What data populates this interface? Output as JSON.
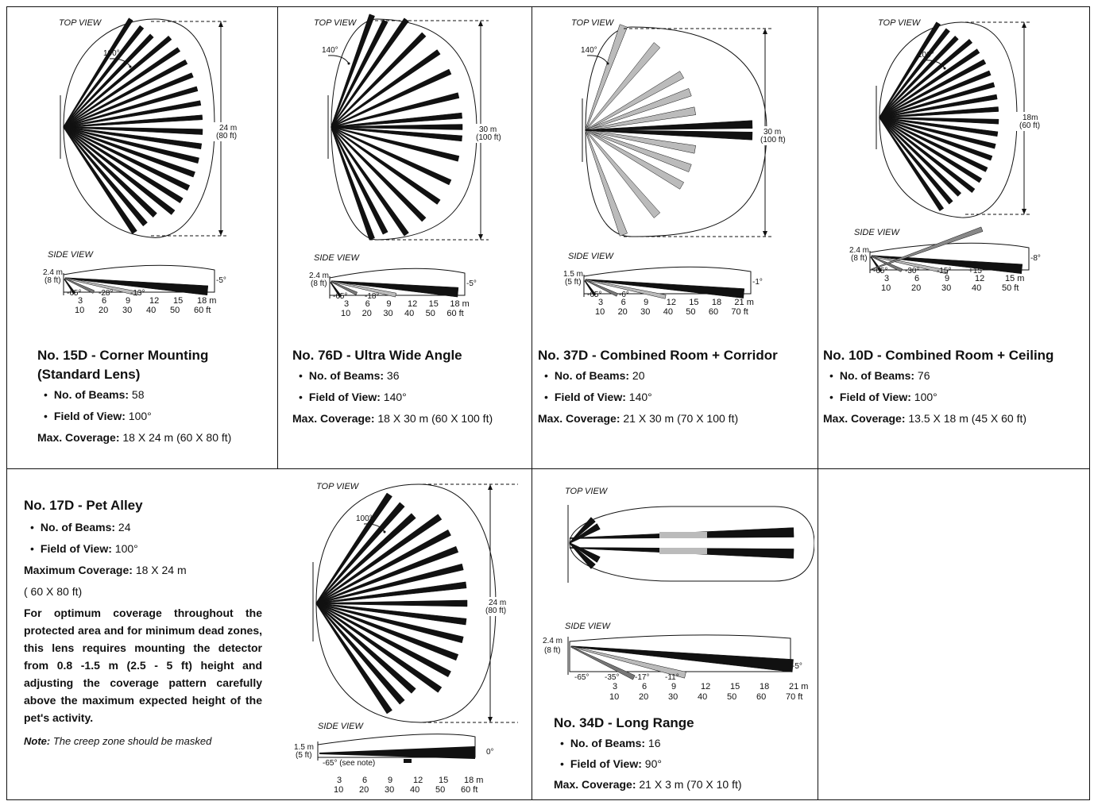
{
  "lenses": [
    {
      "title": "No. 15D - Corner Mounting",
      "subtitle": "(Standard Lens)",
      "beams_label": "No. of Beams:",
      "beams": "58",
      "fov_label": "Field of View:",
      "fov": "100°",
      "coverage_label": "Max. Coverage:",
      "coverage": "18 X 24 m (60 X 80 ft)",
      "top_view": "TOP VIEW",
      "angle": "100°",
      "range_m": "24 m",
      "range_ft": "(80 ft)",
      "side_view": "SIDE VIEW",
      "height_m": "2.4 m",
      "height_ft": "(8 ft)",
      "side_angles": [
        "-65°",
        "-28°",
        "-13°",
        "-5°"
      ],
      "ticks_m": [
        "3",
        "6",
        "9",
        "12",
        "15",
        "18 m"
      ],
      "ticks_ft": [
        "10",
        "20",
        "30",
        "40",
        "50",
        "60 ft"
      ]
    },
    {
      "title": "No. 76D - Ultra Wide Angle",
      "beams_label": "No. of Beams:",
      "beams": "36",
      "fov_label": "Field of View:",
      "fov": "140°",
      "coverage_label": "Max. Coverage:",
      "coverage": "18 X 30 m  (60 X 100 ft)",
      "top_view": "TOP VIEW",
      "angle": "140°",
      "range_m": "30 m",
      "range_ft": "(100 ft)",
      "side_view": "SIDE VIEW",
      "height_m": "2.4 m",
      "height_ft": "(8 ft)",
      "side_angles": [
        "-65°",
        "-18°",
        "-5°"
      ],
      "ticks_m": [
        "3",
        "6",
        "9",
        "12",
        "15",
        "18 m"
      ],
      "ticks_ft": [
        "10",
        "20",
        "30",
        "40",
        "50",
        "60 ft"
      ]
    },
    {
      "title": "No. 37D - Combined Room + Corridor",
      "beams_label": "No. of Beams:",
      "beams": "20",
      "fov_label": "Field of View:",
      "fov": "140°",
      "coverage_label": "Max. Coverage:",
      "coverage": "21 X 30 m (70 X 100 ft)",
      "top_view": "TOP VIEW",
      "angle": "140°",
      "range_m": "30 m",
      "range_ft": "(100 ft)",
      "side_view": "SIDE VIEW",
      "height_m": "1.5 m",
      "height_ft": "(5 ft)",
      "side_angles": [
        "-65°",
        "-6°",
        "-1°"
      ],
      "ticks_m": [
        "3",
        "6",
        "9",
        "12",
        "15",
        "18",
        "21 m"
      ],
      "ticks_ft": [
        "10",
        "20",
        "30",
        "40",
        "50",
        "60",
        "70 ft"
      ]
    },
    {
      "title": "No. 10D - Combined Room + Ceiling",
      "beams_label": "No. of Beams:",
      "beams": "76",
      "fov_label": "Field of View:",
      "fov": "100°",
      "coverage_label": "Max. Coverage:",
      "coverage": "13.5 X 18 m (45 X 60 ft)",
      "top_view": "TOP VIEW",
      "angle": "100°",
      "range_m": "18m",
      "range_ft": "(60 ft)",
      "side_view": "SIDE VIEW",
      "height_m": "2.4 m",
      "height_ft": "(8 ft)",
      "side_angles": [
        "-65°",
        "-30°",
        "-15°",
        "+15°",
        "-8°"
      ],
      "ticks_m": [
        "3",
        "6",
        "9",
        "12",
        "15 m"
      ],
      "ticks_ft": [
        "10",
        "20",
        "30",
        "40",
        "50 ft"
      ]
    }
  ],
  "pet": {
    "title": "No. 17D -  Pet Alley",
    "beams_label": "No. of Beams:",
    "beams": "24",
    "fov_label": "Field of View:",
    "fov": "100°",
    "coverage_label": "Maximum Coverage:",
    "coverage": "18 X 24 m",
    "coverage_ft": "( 60 X 80 ft)",
    "paragraph": "For optimum coverage throughout the protected area and for minimum dead zones, this lens requires mounting the detector from 0.8 -1.5 m (2.5 - 5 ft) height and adjusting the coverage pattern carefully above the maximum expected height of the pet's activity.",
    "note_label": "Note:",
    "note": "The creep zone should be masked",
    "top_view": "TOP VIEW",
    "angle": "100°",
    "range_m": "24 m",
    "range_ft": "(80 ft)",
    "side_view": "SIDE VIEW",
    "height_m": "1.5 m",
    "height_ft": "(5 ft)",
    "side_angles": [
      "-65° (see note)",
      "0°"
    ],
    "ticks_m": [
      "3",
      "6",
      "9",
      "12",
      "15",
      "18 m"
    ],
    "ticks_ft": [
      "10",
      "20",
      "30",
      "40",
      "50",
      "60 ft"
    ]
  },
  "long_range": {
    "title": "No. 34D -  Long Range",
    "beams_label": "No. of Beams:",
    "beams": "16",
    "fov_label": "Field of View:",
    "fov": "90°",
    "coverage_label": "Max. Coverage:",
    "coverage": "21 X 3 m (70 X 10 ft)",
    "top_view": "TOP VIEW",
    "side_view": "SIDE VIEW",
    "height_m": "2.4 m",
    "height_ft": "(8 ft)",
    "side_angles": [
      "-65°",
      "-35°",
      "-17°",
      "-11°",
      "-5°"
    ],
    "ticks_m": [
      "3",
      "6",
      "9",
      "12",
      "15",
      "18",
      "21 m"
    ],
    "ticks_ft": [
      "10",
      "20",
      "30",
      "40",
      "50",
      "60",
      "70 ft"
    ]
  }
}
